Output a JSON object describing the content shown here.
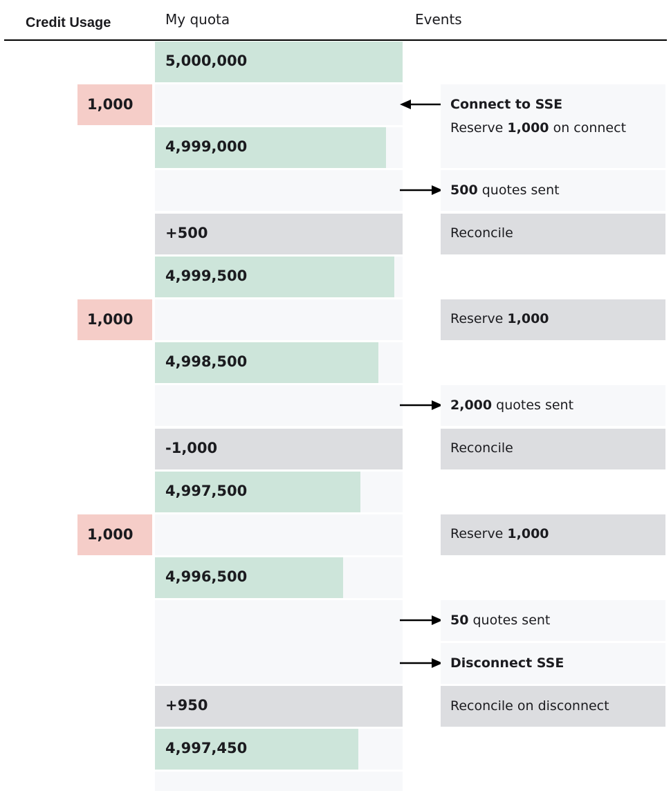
{
  "headers": {
    "credit_usage": "Credit Usage",
    "my_quota": "My quota",
    "events": "Events"
  },
  "steps": [
    {
      "quota": "5,000,000"
    },
    {
      "credit": "1,000",
      "event_bold": "Connect to SSE",
      "event_pre": "Reserve ",
      "event_num": "1,000",
      "event_post": " on connect"
    },
    {
      "quota": "4,999,000"
    },
    {
      "event_bold": "500",
      "event_post": " quotes sent"
    },
    {
      "reconcile": "+500",
      "event": "Reconcile"
    },
    {
      "quota": "4,999,500"
    },
    {
      "credit": "1,000",
      "event_pre": "Reserve ",
      "event_num": "1,000"
    },
    {
      "quota": "4,998,500"
    },
    {
      "event_bold": "2,000",
      "event_post": " quotes sent"
    },
    {
      "reconcile": "-1,000",
      "event": "Reconcile"
    },
    {
      "quota": "4,997,500"
    },
    {
      "credit": "1,000",
      "event_pre": "Reserve ",
      "event_num": "1,000"
    },
    {
      "quota": "4,996,500"
    },
    {
      "event_bold": "50",
      "event_post": " quotes sent"
    },
    {
      "event_bold": "Disconnect SSE"
    },
    {
      "reconcile": "+950",
      "event": "Reconcile on disconnect"
    },
    {
      "quota": "4,997,450"
    }
  ],
  "colors": {
    "quota_bar": "#cde5da",
    "credit_box": "#f5cdc8",
    "reconcile": "#dcdde0",
    "strip": "#f7f8fa"
  }
}
